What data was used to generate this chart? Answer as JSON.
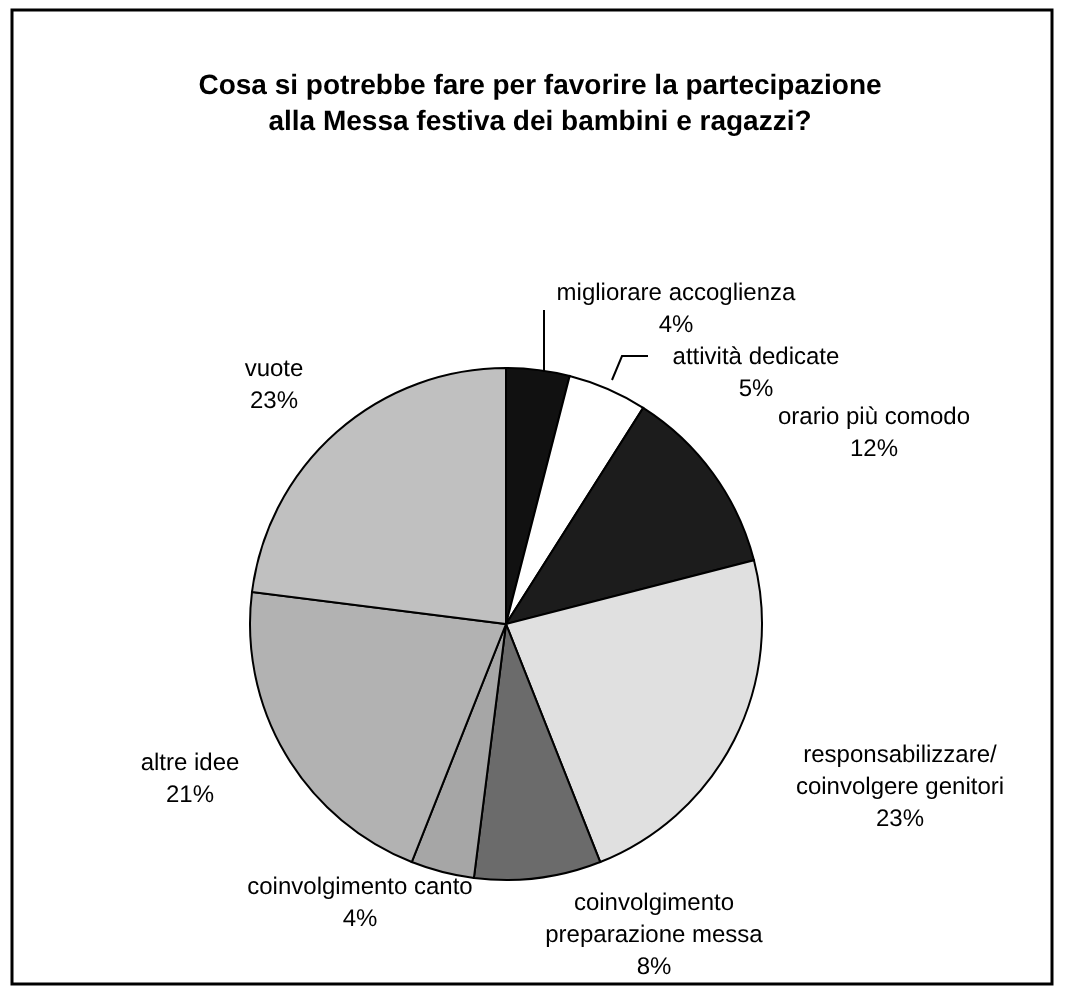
{
  "chart_data": {
    "type": "pie",
    "title": "Cosa si potrebbe fare per favorire la partecipazione\nalla Messa festiva dei bambini e ragazzi?",
    "categories": [
      "migliorare accoglienza",
      "attività dedicate",
      "orario più comodo",
      "responsabilizzare/\ncoinvolgere genitori",
      "coinvolgimento\npreparazione messa",
      "coinvolgimento canto",
      "altre idee",
      "vuote"
    ],
    "values": [
      4,
      5,
      12,
      23,
      8,
      4,
      21,
      23
    ],
    "colors": [
      "#111111",
      "#ffffff",
      "#1c1c1c",
      "#e0e0e0",
      "#6b6b6b",
      "#a6a6a6",
      "#b2b2b2",
      "#c0c0c0"
    ],
    "value_labels": [
      "4%",
      "5%",
      "12%",
      "23%",
      "8%",
      "4%",
      "21%",
      "23%"
    ]
  }
}
